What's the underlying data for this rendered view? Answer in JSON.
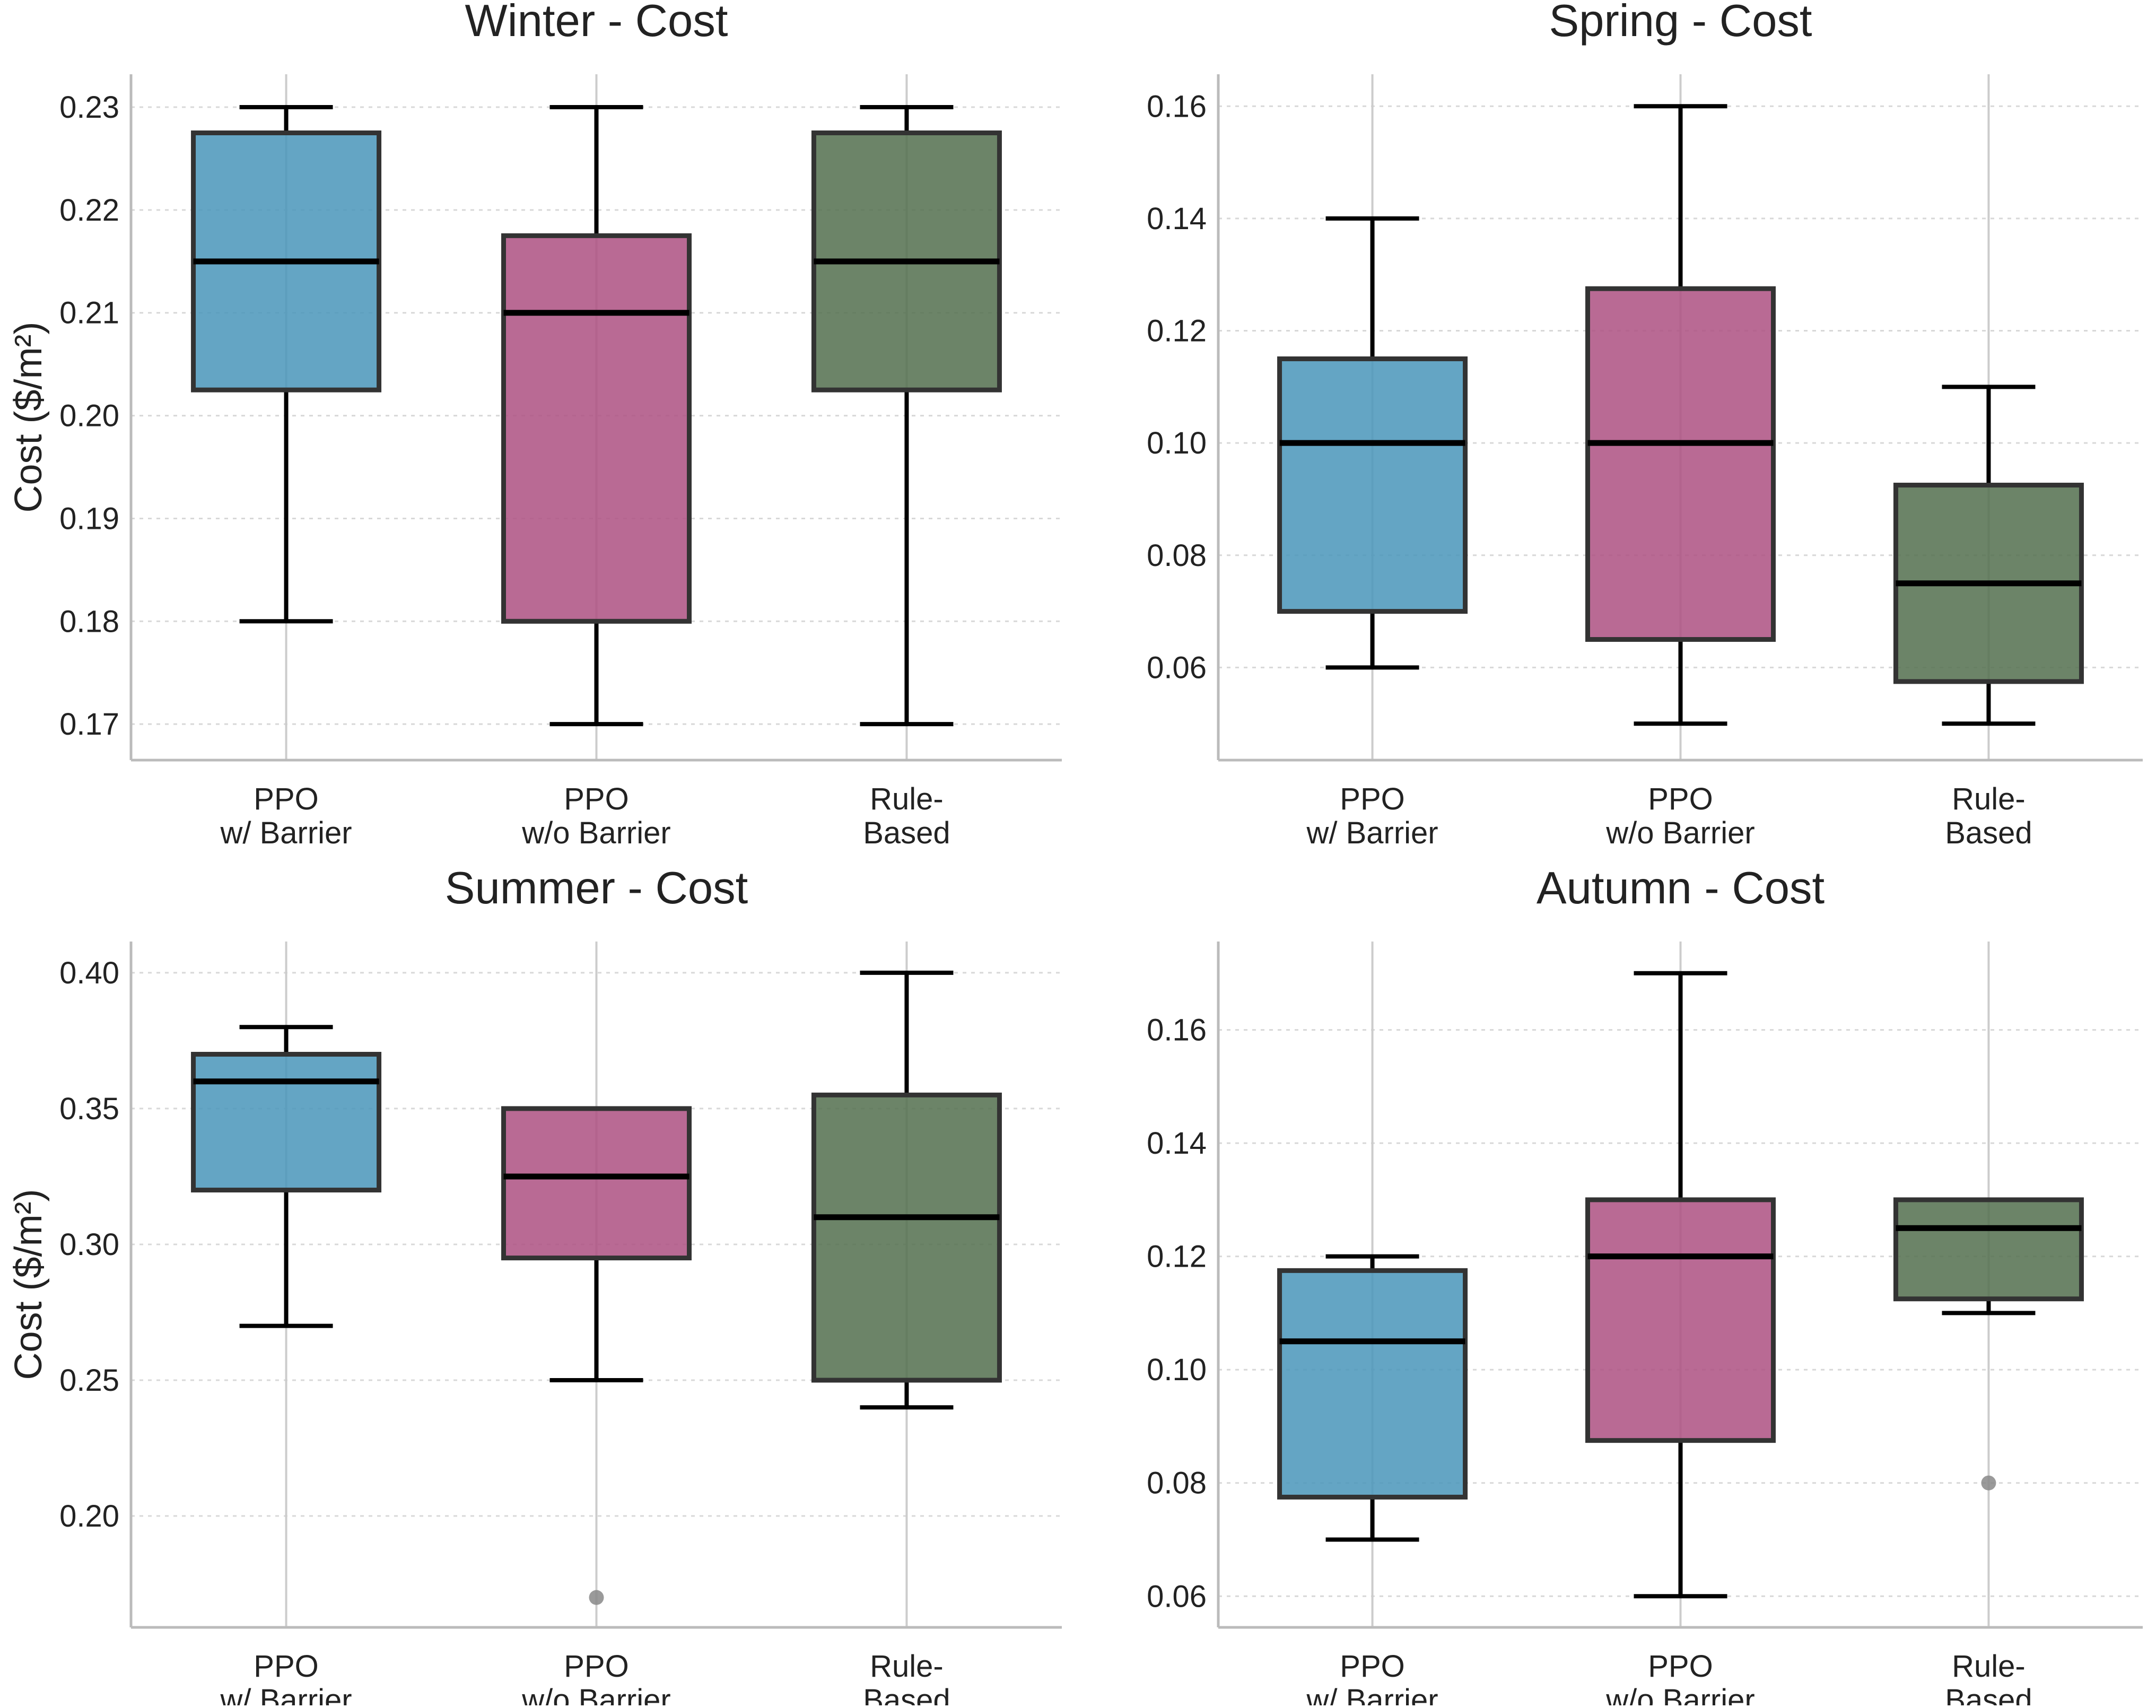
{
  "figure": {
    "ylabel": "Cost ($/m²)",
    "category_labels": [
      [
        "PPO",
        "w/ Barrier"
      ],
      [
        "PPO",
        "w/o Barrier"
      ],
      [
        "Rule-",
        "Based"
      ]
    ],
    "colors": {
      "ppo_barrier": "#4a96ba",
      "ppo_no_barrier": "#ae5182",
      "rule_based": "#54704f"
    }
  },
  "chart_data": [
    {
      "type": "box",
      "title": "Winter - Cost",
      "ylabel": "Cost ($/m²)",
      "ylim": [
        0.1665,
        0.2332
      ],
      "yticks": [
        "0.17",
        "0.18",
        "0.19",
        "0.20",
        "0.21",
        "0.22",
        "0.23"
      ],
      "categories": [
        "PPO w/ Barrier",
        "PPO w/o Barrier",
        "Rule-Based"
      ],
      "boxes": [
        {
          "whislo": 0.18,
          "q1": 0.2025,
          "med": 0.215,
          "q3": 0.2275,
          "whishi": 0.23,
          "fliers": []
        },
        {
          "whislo": 0.17,
          "q1": 0.18,
          "med": 0.21,
          "q3": 0.2175,
          "whishi": 0.23,
          "fliers": []
        },
        {
          "whislo": 0.17,
          "q1": 0.2025,
          "med": 0.215,
          "q3": 0.2275,
          "whishi": 0.23,
          "fliers": []
        }
      ]
    },
    {
      "type": "box",
      "title": "Spring - Cost",
      "ylabel": "",
      "ylim": [
        0.0435,
        0.1657
      ],
      "yticks": [
        "0.06",
        "0.08",
        "0.10",
        "0.12",
        "0.14",
        "0.16"
      ],
      "categories": [
        "PPO w/ Barrier",
        "PPO w/o Barrier",
        "Rule-Based"
      ],
      "boxes": [
        {
          "whislo": 0.06,
          "q1": 0.07,
          "med": 0.1,
          "q3": 0.115,
          "whishi": 0.14,
          "fliers": []
        },
        {
          "whislo": 0.05,
          "q1": 0.065,
          "med": 0.1,
          "q3": 0.1275,
          "whishi": 0.16,
          "fliers": []
        },
        {
          "whislo": 0.05,
          "q1": 0.0575,
          "med": 0.075,
          "q3": 0.0925,
          "whishi": 0.11,
          "fliers": []
        }
      ]
    },
    {
      "type": "box",
      "title": "Summer - Cost",
      "ylabel": "Cost ($/m²)",
      "ylim": [
        0.159,
        0.4115
      ],
      "yticks": [
        "0.20",
        "0.25",
        "0.30",
        "0.35",
        "0.40"
      ],
      "categories": [
        "PPO w/ Barrier",
        "PPO w/o Barrier",
        "Rule-Based"
      ],
      "boxes": [
        {
          "whislo": 0.27,
          "q1": 0.32,
          "med": 0.36,
          "q3": 0.37,
          "whishi": 0.38,
          "fliers": []
        },
        {
          "whislo": 0.25,
          "q1": 0.295,
          "med": 0.325,
          "q3": 0.35,
          "whishi": 0.35,
          "fliers": [
            0.17
          ]
        },
        {
          "whislo": 0.24,
          "q1": 0.25,
          "med": 0.31,
          "q3": 0.355,
          "whishi": 0.4,
          "fliers": []
        }
      ]
    },
    {
      "type": "box",
      "title": "Autumn - Cost",
      "ylabel": "",
      "ylim": [
        0.0545,
        0.1756
      ],
      "yticks": [
        "0.06",
        "0.08",
        "0.10",
        "0.12",
        "0.14",
        "0.16"
      ],
      "categories": [
        "PPO w/ Barrier",
        "PPO w/o Barrier",
        "Rule-Based"
      ],
      "boxes": [
        {
          "whislo": 0.07,
          "q1": 0.0775,
          "med": 0.105,
          "q3": 0.1175,
          "whishi": 0.12,
          "fliers": []
        },
        {
          "whislo": 0.06,
          "q1": 0.0875,
          "med": 0.12,
          "q3": 0.13,
          "whishi": 0.17,
          "fliers": []
        },
        {
          "whislo": 0.11,
          "q1": 0.1125,
          "med": 0.125,
          "q3": 0.13,
          "whishi": 0.13,
          "fliers": [
            0.08
          ]
        }
      ]
    }
  ]
}
